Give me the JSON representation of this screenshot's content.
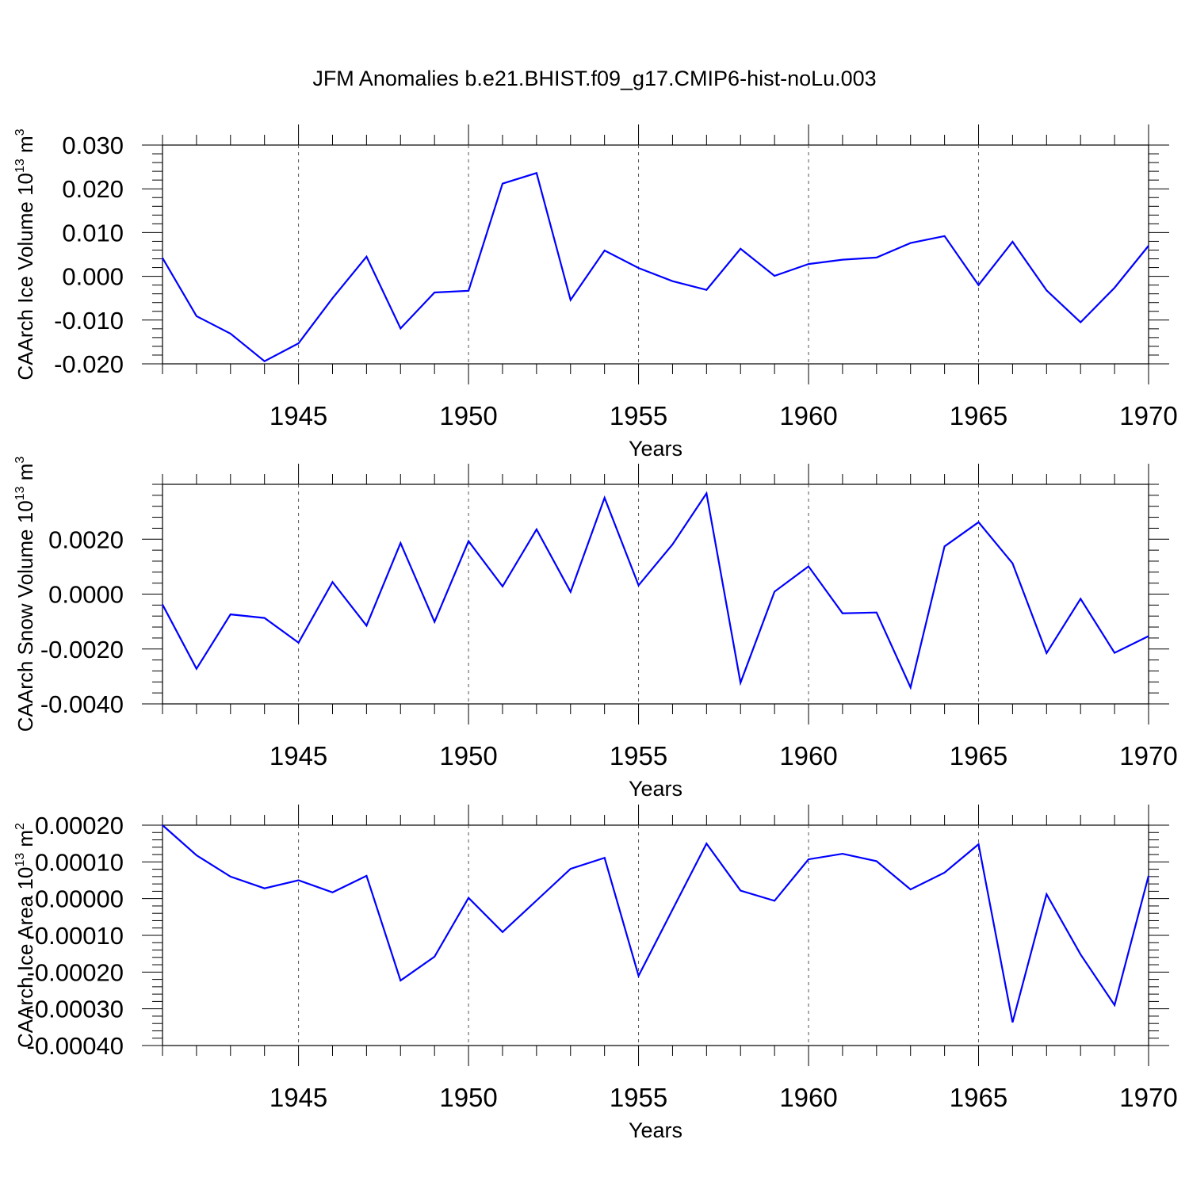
{
  "title": "JFM Anomalies b.e21.BHIST.f09_g17.CMIP6-hist-noLu.003",
  "chart_data": [
    {
      "type": "line",
      "ylabel_main": "CAArch Ice Volume 10",
      "ylabel_exp": "13",
      "ylabel_unit": " m",
      "ylabel_unit_exp": "3",
      "xlabel": "Years",
      "color": "#0000ff",
      "xlim": [
        1941,
        1970
      ],
      "ylim": [
        -0.02,
        0.03
      ],
      "yticks": [
        -0.02,
        -0.01,
        0.0,
        0.01,
        0.02,
        0.03
      ],
      "ytick_labels": [
        "-0.020",
        "-0.010",
        "0.000",
        "0.010",
        "0.020",
        "0.030"
      ],
      "xticks": [
        1945,
        1950,
        1955,
        1960,
        1965,
        1970
      ],
      "xtick_labels": [
        "1945",
        "1950",
        "1955",
        "1960",
        "1965",
        "1970"
      ],
      "x": [
        1941,
        1942,
        1943,
        1944,
        1945,
        1946,
        1947,
        1948,
        1949,
        1950,
        1951,
        1952,
        1953,
        1954,
        1955,
        1956,
        1957,
        1958,
        1959,
        1960,
        1961,
        1962,
        1963,
        1964,
        1965,
        1966,
        1967,
        1968,
        1969,
        1970
      ],
      "y": [
        0.0042,
        -0.0091,
        -0.0131,
        -0.0194,
        -0.0153,
        -0.005,
        0.0045,
        -0.0119,
        -0.0037,
        -0.0033,
        0.0212,
        0.0236,
        -0.0054,
        0.0059,
        0.0019,
        -0.0011,
        -0.0031,
        0.0063,
        0.0001,
        0.0028,
        0.0038,
        0.0043,
        0.0076,
        0.0092,
        -0.002,
        0.0079,
        -0.0032,
        -0.0105,
        -0.0026,
        0.007
      ]
    },
    {
      "type": "line",
      "ylabel_main": "CAArch Snow Volume 10",
      "ylabel_exp": "13",
      "ylabel_unit": " m",
      "ylabel_unit_exp": "3",
      "xlabel": "Years",
      "color": "#0000ff",
      "xlim": [
        1941,
        1970
      ],
      "ylim": [
        -0.004,
        0.004
      ],
      "yticks": [
        -0.004,
        -0.002,
        0.0,
        0.002
      ],
      "ytick_labels": [
        "-0.0040",
        "-0.0020",
        "0.0000",
        "0.0020"
      ],
      "xticks": [
        1945,
        1950,
        1955,
        1960,
        1965,
        1970
      ],
      "xtick_labels": [
        "1945",
        "1950",
        "1955",
        "1960",
        "1965",
        "1970"
      ],
      "x": [
        1941,
        1942,
        1943,
        1944,
        1945,
        1946,
        1947,
        1948,
        1949,
        1950,
        1951,
        1952,
        1953,
        1954,
        1955,
        1956,
        1957,
        1958,
        1959,
        1960,
        1961,
        1962,
        1963,
        1964,
        1965,
        1966,
        1967,
        1968,
        1969,
        1970
      ],
      "y": [
        -0.00038,
        -0.00272,
        -0.00074,
        -0.00087,
        -0.00177,
        0.00044,
        -0.00115,
        0.00186,
        -0.00101,
        0.00193,
        0.00028,
        0.00236,
        8e-05,
        0.00351,
        0.00032,
        0.00181,
        0.00367,
        -0.00323,
        9e-05,
        0.00101,
        -0.0007,
        -0.00067,
        -0.0034,
        0.00174,
        0.00262,
        0.00112,
        -0.00215,
        -0.00017,
        -0.00214,
        -0.00153
      ]
    },
    {
      "type": "line",
      "ylabel_main": "CAArch Ice Area 10",
      "ylabel_exp": "13",
      "ylabel_unit": " m",
      "ylabel_unit_exp": "2",
      "xlabel": "Years",
      "color": "#0000ff",
      "xlim": [
        1941,
        1970
      ],
      "ylim": [
        -0.0004,
        0.0002
      ],
      "yticks": [
        -0.0004,
        -0.0003,
        -0.0002,
        -0.0001,
        0.0,
        0.0001,
        0.0002
      ],
      "ytick_labels": [
        "-0.00040",
        "-0.00030",
        "-0.00020",
        "-0.00010",
        "0.00000",
        "0.00010",
        "0.00020"
      ],
      "xticks": [
        1945,
        1950,
        1955,
        1960,
        1965,
        1970
      ],
      "xtick_labels": [
        "1945",
        "1950",
        "1955",
        "1960",
        "1965",
        "1970"
      ],
      "x": [
        1941,
        1942,
        1943,
        1944,
        1945,
        1946,
        1947,
        1948,
        1949,
        1950,
        1951,
        1952,
        1953,
        1954,
        1955,
        1956,
        1957,
        1958,
        1959,
        1960,
        1961,
        1962,
        1963,
        1964,
        1965,
        1966,
        1967,
        1968,
        1969,
        1970
      ],
      "y": [
        0.0002,
        0.000118,
        6e-05,
        2.8e-05,
        5e-05,
        1.7e-05,
        6.2e-05,
        -0.000223,
        -0.000158,
        2e-06,
        -9.1e-05,
        -5e-06,
        8.1e-05,
        0.000111,
        -0.00021,
        -3e-05,
        0.00015,
        2.2e-05,
        -6e-06,
        0.000107,
        0.000122,
        0.000102,
        2.5e-05,
        7.1e-05,
        0.000148,
        -0.000337,
        1.2e-05,
        -0.000152,
        -0.00029,
        6.2e-05
      ]
    }
  ]
}
